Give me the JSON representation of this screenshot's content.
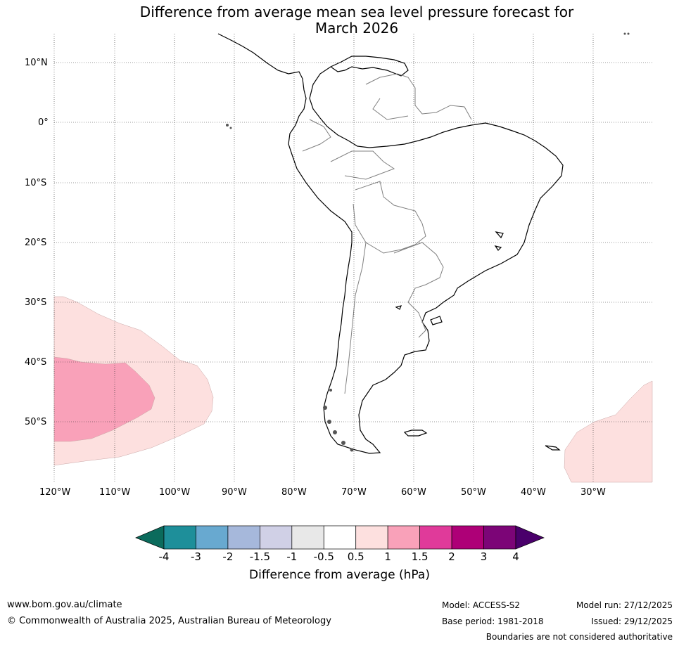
{
  "title": {
    "line1": "Difference from average mean sea level pressure forecast for",
    "line2": "March 2026"
  },
  "map": {
    "lat_labels": [
      "10°N",
      "0°",
      "10°S",
      "20°S",
      "30°S",
      "40°S",
      "50°S"
    ],
    "lon_labels": [
      "120°W",
      "110°W",
      "100°W",
      "90°W",
      "80°W",
      "70°W",
      "60°W",
      "50°W",
      "40°W",
      "30°W"
    ],
    "lon_range_deg": [
      -120,
      -20
    ],
    "lat_range_deg": [
      -60,
      15
    ],
    "anomaly_regions": [
      {
        "name": "south-pacific-anomaly",
        "bin": "0.5 to 1",
        "color": "#fde0df"
      },
      {
        "name": "south-pacific-core",
        "bin": "1 to 1.5",
        "color": "#f9a1b9"
      },
      {
        "name": "south-atlantic-anomaly",
        "bin": "0.5 to 1",
        "color": "#fde0df"
      }
    ]
  },
  "colorbar": {
    "label": "Difference from average (hPa)",
    "ticks": [
      "-4",
      "-3",
      "-2",
      "-1.5",
      "-1",
      "-0.5",
      "0.5",
      "1",
      "1.5",
      "2",
      "3",
      "4"
    ],
    "colors": {
      "below_min": "#0b6b5c",
      "bins": [
        "#1e8f9a",
        "#68a9d0",
        "#a6b8db",
        "#d0d0e6",
        "#e8e8e8",
        "#ffffff",
        "#fde0df",
        "#f9a1b9",
        "#e03a9a",
        "#ae0077",
        "#7c0577"
      ],
      "above_max": "#4a006b"
    }
  },
  "footer": {
    "website": "www.bom.gov.au/climate",
    "copyright": "© Commonwealth of Australia 2025, Australian Bureau of Meteorology",
    "model": "Model: ACCESS-S2",
    "base_period": "Base period: 1981-2018",
    "model_run": "Model run: 27/12/2025",
    "issued": "Issued: 29/12/2025",
    "disclaimer": "Boundaries are not considered authoritative"
  }
}
